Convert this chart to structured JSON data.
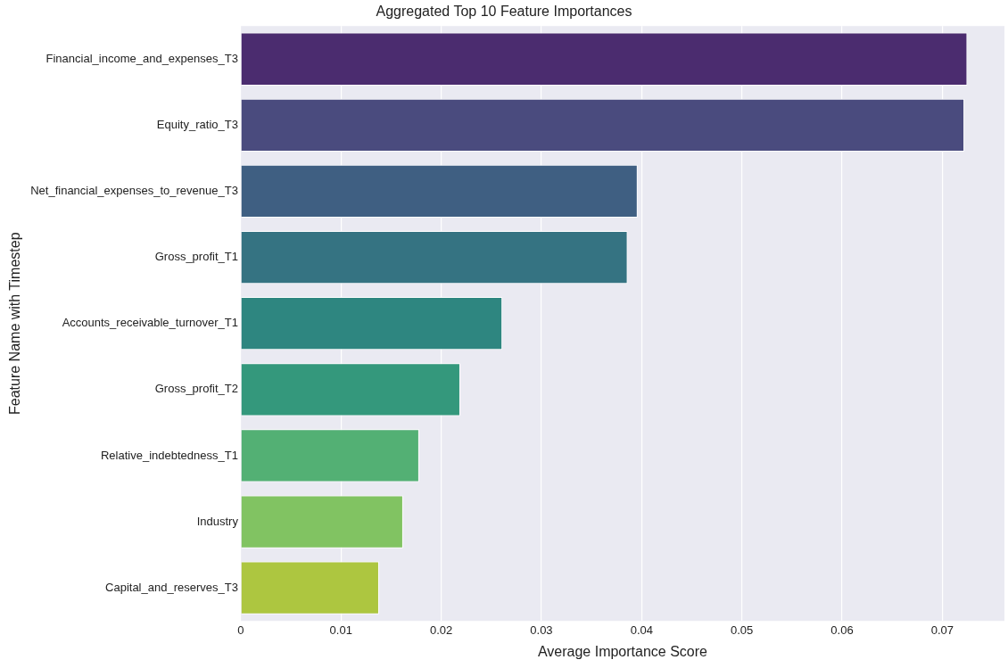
{
  "chart_data": {
    "type": "bar",
    "orientation": "horizontal",
    "title": "Aggregated Top 10 Feature Importances",
    "xlabel": "Average Importance Score",
    "ylabel": "Feature Name with Timestep",
    "categories": [
      "Financial_income_and_expenses_T3",
      "Equity_ratio_T3",
      "Net_financial_expenses_to_revenue_T3",
      "Gross_profit_T1",
      "Accounts_receivable_turnover_T1",
      "Gross_profit_T2",
      "Relative_indebtedness_T1",
      "Industry",
      "Capital_and_reserves_T3"
    ],
    "values": [
      0.0725,
      0.0722,
      0.0396,
      0.0386,
      0.0261,
      0.0219,
      0.0178,
      0.0162,
      0.0138
    ],
    "colors": [
      "#4b2c6f",
      "#4a4b7e",
      "#3f5f82",
      "#357382",
      "#2e8680",
      "#34987c",
      "#53b074",
      "#81c362",
      "#adc640"
    ],
    "xlim": [
      0,
      0.0762
    ],
    "xticks": [
      0,
      0.01,
      0.02,
      0.03,
      0.04,
      0.05,
      0.06,
      0.07
    ],
    "grid": "x"
  }
}
